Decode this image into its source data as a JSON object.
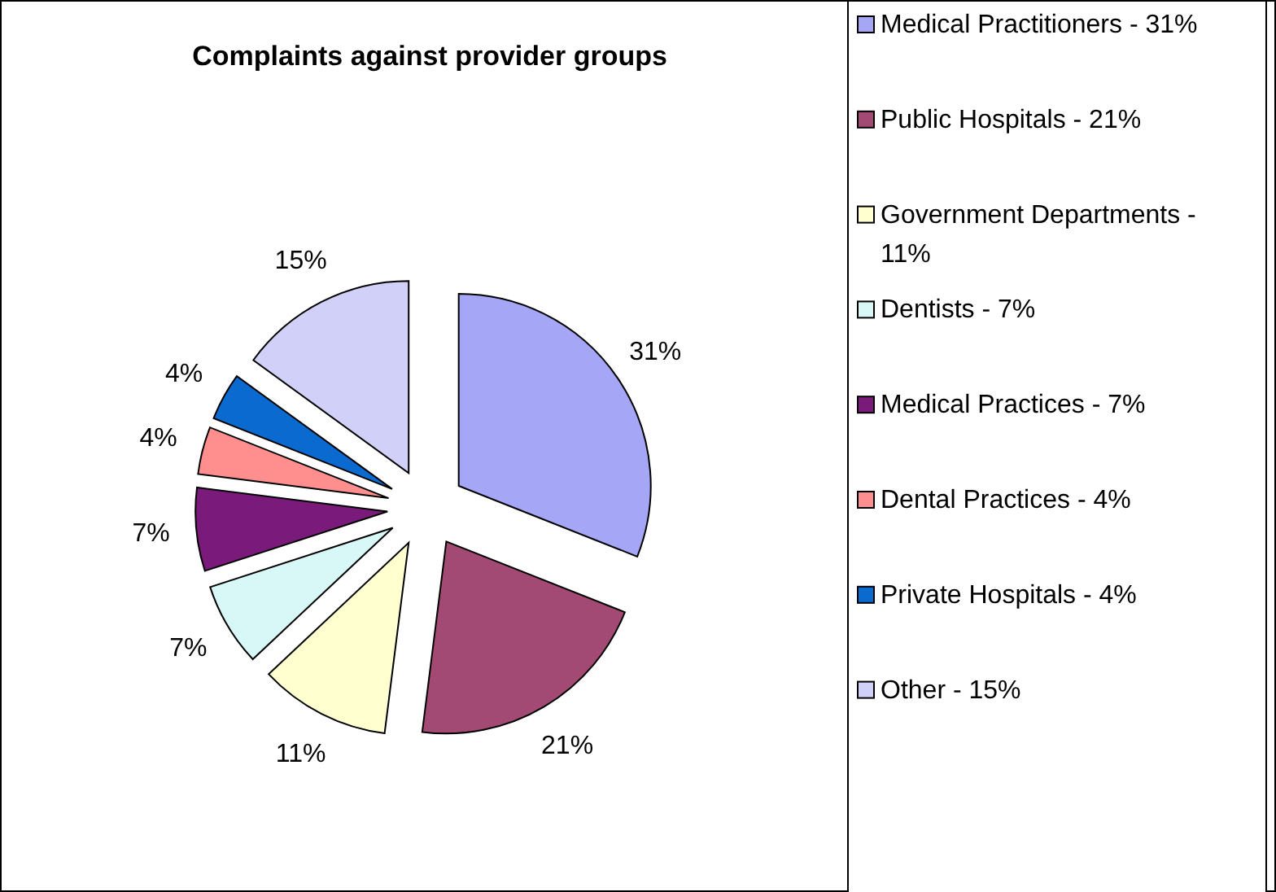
{
  "chart_data": {
    "type": "pie",
    "title": "Complaints against provider groups",
    "categories": [
      "Medical Practitioners - 31%",
      "Public Hospitals - 21%",
      "Government Departments - 11%",
      "Dentists - 7%",
      "Medical Practices - 7%",
      "Dental Practices - 4%",
      "Private Hospitals - 4%",
      "Other - 15%"
    ],
    "values": [
      31,
      21,
      11,
      7,
      7,
      4,
      4,
      15
    ],
    "value_labels": [
      "31%",
      "21%",
      "11%",
      "7%",
      "7%",
      "4%",
      "4%",
      "15%"
    ],
    "colors": [
      "#a6a6f6",
      "#a34a74",
      "#ffffd0",
      "#d8f8f8",
      "#7a1a7a",
      "#ff8f8f",
      "#0a6ad0",
      "#d0d0f8"
    ],
    "legend": "right"
  }
}
